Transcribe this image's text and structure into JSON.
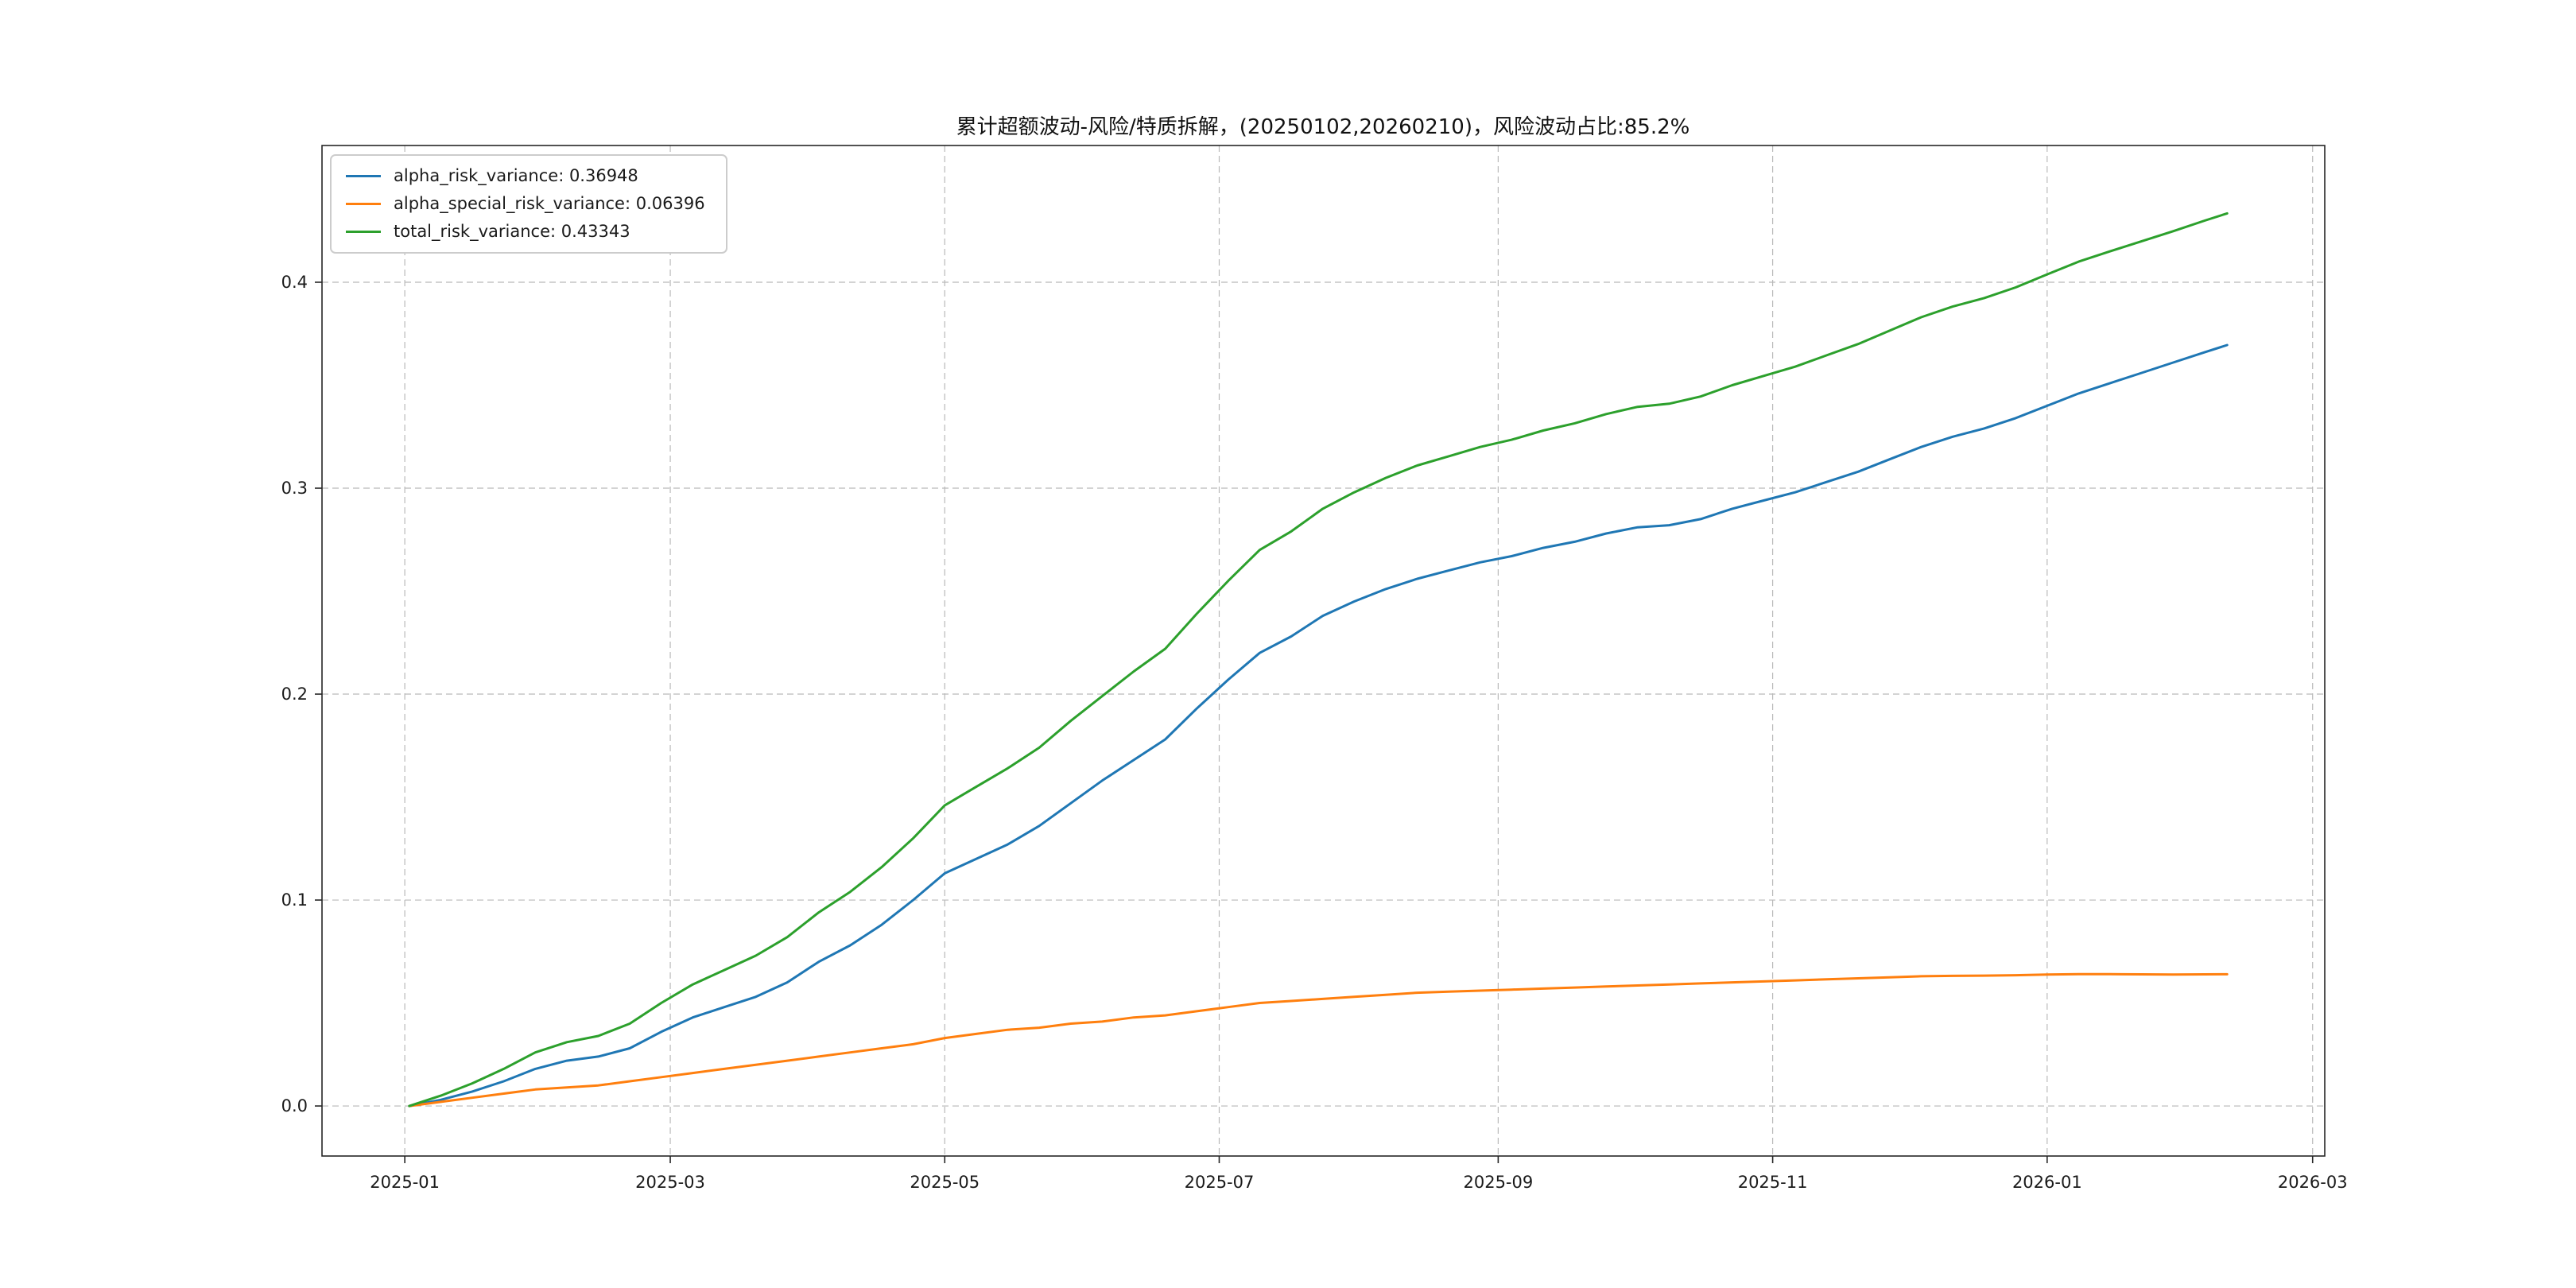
{
  "chart_data": {
    "type": "line",
    "title": "累计超额波动-风险/特质拆解，(20250102,20260210)，风险波动占比:85.2%",
    "xlabel": "",
    "ylabel": "",
    "grid": true,
    "legend_position": "upper-left",
    "x_unit": "days_since_2025-01-01",
    "xlim_days": [
      -18.4,
      426.7
    ],
    "ylim": [
      -0.0243,
      0.4664
    ],
    "x_ticks": [
      {
        "label": "2025-01",
        "day": 0
      },
      {
        "label": "2025-03",
        "day": 59
      },
      {
        "label": "2025-05",
        "day": 120
      },
      {
        "label": "2025-07",
        "day": 181
      },
      {
        "label": "2025-09",
        "day": 243
      },
      {
        "label": "2025-11",
        "day": 304
      },
      {
        "label": "2026-01",
        "day": 365
      },
      {
        "label": "2026-03",
        "day": 424
      }
    ],
    "y_ticks": [
      {
        "label": "0.0",
        "value": 0.0
      },
      {
        "label": "0.1",
        "value": 0.1
      },
      {
        "label": "0.2",
        "value": 0.2
      },
      {
        "label": "0.3",
        "value": 0.3
      },
      {
        "label": "0.4",
        "value": 0.4
      }
    ],
    "x_days": [
      1,
      8,
      15,
      22,
      29,
      36,
      43,
      50,
      57,
      64,
      71,
      78,
      85,
      92,
      99,
      106,
      113,
      120,
      127,
      134,
      141,
      148,
      155,
      162,
      169,
      176,
      183,
      190,
      197,
      204,
      211,
      218,
      225,
      232,
      239,
      246,
      253,
      260,
      267,
      274,
      281,
      288,
      295,
      302,
      309,
      316,
      323,
      330,
      337,
      344,
      351,
      358,
      365,
      372,
      379,
      386,
      393,
      400,
      405
    ],
    "series": [
      {
        "name": "alpha_risk_variance",
        "final_value": 0.36948,
        "legend_label": "alpha_risk_variance: 0.36948",
        "color": "#1f77b4",
        "values": [
          0.0,
          0.003,
          0.007,
          0.012,
          0.018,
          0.022,
          0.024,
          0.028,
          0.036,
          0.043,
          0.048,
          0.053,
          0.06,
          0.07,
          0.078,
          0.088,
          0.1,
          0.113,
          0.12,
          0.127,
          0.136,
          0.147,
          0.158,
          0.168,
          0.178,
          0.193,
          0.207,
          0.22,
          0.228,
          0.238,
          0.245,
          0.251,
          0.256,
          0.26,
          0.264,
          0.267,
          0.271,
          0.274,
          0.278,
          0.281,
          0.282,
          0.285,
          0.29,
          0.294,
          0.298,
          0.303,
          0.308,
          0.314,
          0.32,
          0.325,
          0.329,
          0.334,
          0.34,
          0.346,
          0.351,
          0.356,
          0.361,
          0.366,
          0.36948
        ]
      },
      {
        "name": "alpha_special_risk_variance",
        "final_value": 0.06396,
        "legend_label": "alpha_special_risk_variance: 0.06396",
        "color": "#ff7f0e",
        "values": [
          0.0,
          0.002,
          0.004,
          0.006,
          0.008,
          0.009,
          0.01,
          0.012,
          0.014,
          0.016,
          0.018,
          0.02,
          0.022,
          0.024,
          0.026,
          0.028,
          0.03,
          0.033,
          0.035,
          0.037,
          0.038,
          0.04,
          0.041,
          0.043,
          0.044,
          0.046,
          0.048,
          0.05,
          0.051,
          0.052,
          0.053,
          0.054,
          0.055,
          0.0555,
          0.056,
          0.0565,
          0.057,
          0.0575,
          0.058,
          0.0585,
          0.059,
          0.0595,
          0.06,
          0.0605,
          0.061,
          0.0615,
          0.062,
          0.0625,
          0.063,
          0.0632,
          0.0633,
          0.0635,
          0.0638,
          0.064,
          0.064,
          0.0639,
          0.0638,
          0.0639,
          0.06396
        ]
      },
      {
        "name": "total_risk_variance",
        "final_value": 0.43343,
        "legend_label": "total_risk_variance: 0.43343",
        "color": "#2ca02c",
        "values": [
          0.0,
          0.005,
          0.011,
          0.018,
          0.026,
          0.031,
          0.034,
          0.04,
          0.05,
          0.059,
          0.066,
          0.073,
          0.082,
          0.094,
          0.104,
          0.116,
          0.13,
          0.146,
          0.155,
          0.164,
          0.174,
          0.187,
          0.199,
          0.211,
          0.222,
          0.239,
          0.255,
          0.27,
          0.279,
          0.29,
          0.298,
          0.305,
          0.311,
          0.3155,
          0.32,
          0.3235,
          0.328,
          0.3315,
          0.336,
          0.3395,
          0.341,
          0.3445,
          0.35,
          0.3545,
          0.359,
          0.3645,
          0.37,
          0.3765,
          0.383,
          0.3882,
          0.3923,
          0.3975,
          0.4038,
          0.41,
          0.415,
          0.4199,
          0.4248,
          0.4299,
          0.43343
        ]
      }
    ]
  }
}
